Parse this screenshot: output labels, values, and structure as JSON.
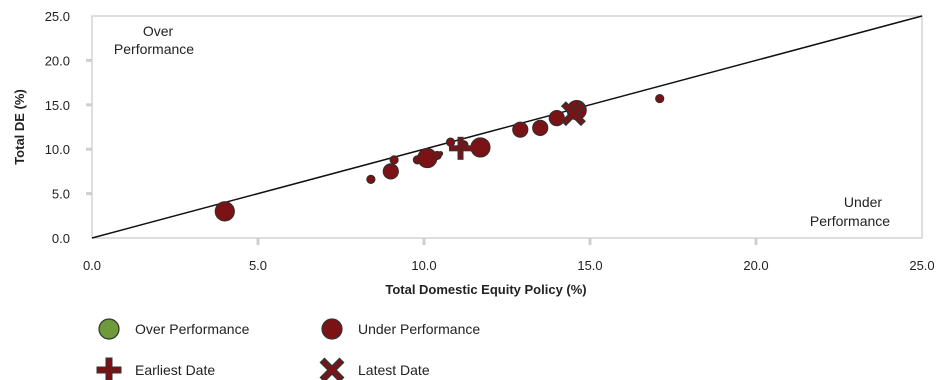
{
  "chart_data": {
    "type": "scatter",
    "xlabel": "Total Domestic Equity Policy (%)",
    "ylabel": "Total DE (%)",
    "xlim": [
      0,
      25
    ],
    "ylim": [
      0,
      25
    ],
    "x_ticks": [
      "0.0",
      "5.0",
      "10.0",
      "15.0",
      "20.0",
      "25.0"
    ],
    "y_ticks": [
      "0.0",
      "5.0",
      "10.0",
      "15.0",
      "20.0",
      "25.0"
    ],
    "annotations": {
      "over_line1": "Over",
      "over_line2": "Performance",
      "under_line1": "Under",
      "under_line2": "Performance"
    },
    "reference_line": {
      "from": [
        0,
        0
      ],
      "to": [
        25,
        25
      ]
    },
    "series": [
      {
        "name": "Under Performance",
        "color": "#7b1216",
        "points": [
          {
            "x": 4.0,
            "y": 3.0,
            "size": "large"
          },
          {
            "x": 8.4,
            "y": 6.6,
            "size": "small"
          },
          {
            "x": 9.0,
            "y": 7.5,
            "size": "medium"
          },
          {
            "x": 9.1,
            "y": 8.8,
            "size": "small"
          },
          {
            "x": 9.8,
            "y": 8.8,
            "size": "small"
          },
          {
            "x": 10.1,
            "y": 9.0,
            "size": "large"
          },
          {
            "x": 10.4,
            "y": 9.3,
            "size": "small"
          },
          {
            "x": 10.5,
            "y": 9.5,
            "size": "tiny"
          },
          {
            "x": 10.8,
            "y": 10.8,
            "size": "small"
          },
          {
            "x": 11.2,
            "y": 10.5,
            "size": "small"
          },
          {
            "x": 11.7,
            "y": 10.2,
            "size": "large"
          },
          {
            "x": 12.9,
            "y": 12.2,
            "size": "medium"
          },
          {
            "x": 13.5,
            "y": 12.4,
            "size": "medium"
          },
          {
            "x": 14.0,
            "y": 13.5,
            "size": "medium"
          },
          {
            "x": 14.6,
            "y": 14.4,
            "size": "large"
          },
          {
            "x": 17.1,
            "y": 15.7,
            "size": "small"
          }
        ]
      }
    ],
    "earliest": {
      "x": 11.1,
      "y": 10.1
    },
    "latest": {
      "x": 14.5,
      "y": 14.0
    },
    "legend": {
      "placement": "bottom",
      "over_label": "Over Performance",
      "over_color": "#6e9a3c",
      "under_label": "Under Performance",
      "under_color": "#7b1216",
      "earliest_label": "Earliest Date",
      "latest_label": "Latest Date"
    }
  }
}
